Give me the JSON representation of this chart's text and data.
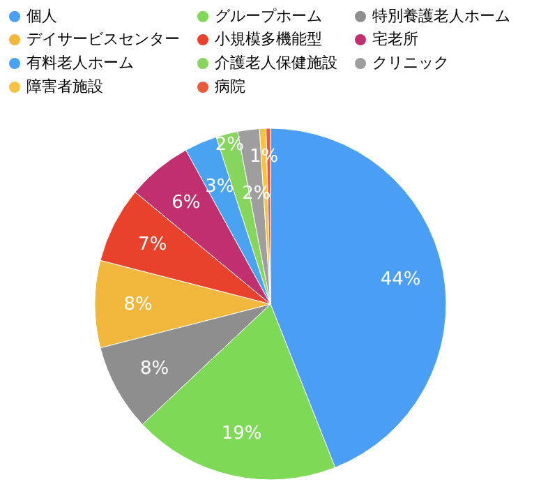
{
  "chart_data": {
    "type": "pie",
    "categories": [
      "個人",
      "グループホーム",
      "特別養護老人ホーム",
      "デイサービスセンター",
      "小規模多機能型",
      "宅老所",
      "有料老人ホーム",
      "介護老人保健施設",
      "クリニック",
      "障害者施設",
      "病院"
    ],
    "values": [
      44,
      19,
      8,
      8,
      7,
      6,
      3,
      2,
      2,
      0.6,
      0.4
    ],
    "value_labels": [
      "44%",
      "19%",
      "8%",
      "8%",
      "7%",
      "6%",
      "3%",
      "2%",
      "2%",
      "1%",
      null
    ],
    "colors": [
      "#4a9ff5",
      "#7ed957",
      "#8e8e8e",
      "#f0b73c",
      "#e8412c",
      "#c0306e",
      "#4aa3f0",
      "#86d65e",
      "#9e9e9e",
      "#f5c242",
      "#ec5a3c"
    ],
    "legend": "top"
  }
}
